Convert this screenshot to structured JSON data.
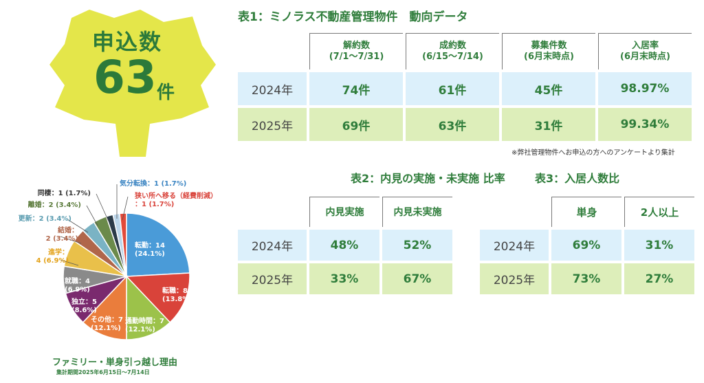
{
  "badge": {
    "label": "申込数",
    "number": "63",
    "unit": "件",
    "color": "#e4e64a"
  },
  "table1": {
    "title": "表1：ミノラス不動産管理物件　動向データ",
    "headers": [
      {
        "l1": "解約数",
        "l2": "(7/1〜7/31)"
      },
      {
        "l1": "成約数",
        "l2": "(6/15〜7/14)"
      },
      {
        "l1": "募集件数",
        "l2": "(6月末時点)"
      },
      {
        "l1": "入居率",
        "l2": "(6月末時点)"
      }
    ],
    "rows": [
      {
        "year": "2024年",
        "cells": [
          "74件",
          "61件",
          "45件",
          "98.97%"
        ]
      },
      {
        "year": "2025年",
        "cells": [
          "69件",
          "63件",
          "31件",
          "99.34%"
        ]
      }
    ],
    "note": "※弊社管理物件へお申込の方へのアンケートより集計"
  },
  "table2": {
    "title": "表2：内見の実施・未実施 比率",
    "headers": [
      "内見実施",
      "内見未実施"
    ],
    "rows": [
      {
        "year": "2024年",
        "cells": [
          "48%",
          "52%"
        ]
      },
      {
        "year": "2025年",
        "cells": [
          "33%",
          "67%"
        ]
      }
    ]
  },
  "table3": {
    "title": "表3：入居人数比",
    "headers": [
      "単身",
      "2人以上"
    ],
    "rows": [
      {
        "year": "2024年",
        "cells": [
          "69%",
          "31%"
        ]
      },
      {
        "year": "2025年",
        "cells": [
          "73%",
          "27%"
        ]
      }
    ]
  },
  "pie": {
    "caption": "ファミリー・単身引っ越し理由",
    "period": "集計期間2025年6月15日〜7月14日"
  },
  "chart_data": {
    "type": "pie",
    "title": "ファミリー・単身引っ越し理由",
    "slices": [
      {
        "label": "転勤",
        "value": 14,
        "percent": "24.1%",
        "color": "#4a9bd8",
        "text": [
          "転勤：14",
          "(24.1%)"
        ]
      },
      {
        "label": "転職",
        "value": 8,
        "percent": "13.8%",
        "color": "#d9433a",
        "text": [
          "転職：8",
          "(13.8%)"
        ]
      },
      {
        "label": "通勤時間",
        "value": 7,
        "percent": "12.1%",
        "color": "#9cc24a",
        "text": [
          "通勤時間：7",
          "(12.1%)"
        ]
      },
      {
        "label": "その他",
        "value": 7,
        "percent": "12.1%",
        "color": "#ea7d3c",
        "text": [
          "その他：7",
          "(12.1%)"
        ]
      },
      {
        "label": "独立",
        "value": 5,
        "percent": "8.6%",
        "color": "#7a2a6e",
        "text": [
          "独立：5",
          "(8.6%)"
        ]
      },
      {
        "label": "就職",
        "value": 4,
        "percent": "6.9%",
        "color": "#8a8a8a",
        "text": [
          "就職：4",
          "(6.9%)"
        ]
      },
      {
        "label": "進学",
        "value": 4,
        "percent": "6.9%",
        "color": "#e9c04a",
        "text": [
          "進学：",
          "4 (6.9%)"
        ]
      },
      {
        "label": "結婚",
        "value": 2,
        "percent": "3.4%",
        "color": "#b0664a",
        "text": [
          "結婚：",
          "2 (3.4%)"
        ]
      },
      {
        "label": "更新",
        "value": 2,
        "percent": "3.4%",
        "color": "#7ab3c4",
        "text": [
          "更新：2 (3.4%)"
        ]
      },
      {
        "label": "離婚",
        "value": 2,
        "percent": "3.4%",
        "color": "#6b8a4a",
        "text": [
          "離婚：2 (3.4%)"
        ]
      },
      {
        "label": "同棲",
        "value": 1,
        "percent": "1.7%",
        "color": "#2b3a48",
        "text": [
          "同棲：1 (1.7%)"
        ]
      },
      {
        "label": "気分転換",
        "value": 1,
        "percent": "1.7%",
        "color": "#bcd6ea",
        "text": [
          "気分転換：1 (1.7%)"
        ]
      },
      {
        "label": "狭い所へ移る(経費削減)",
        "value": 1,
        "percent": "1.7%",
        "color": "#e24a3a",
        "text": [
          "狭い所へ移る（経費削減）",
          "：1 (1.7%)"
        ]
      }
    ]
  }
}
